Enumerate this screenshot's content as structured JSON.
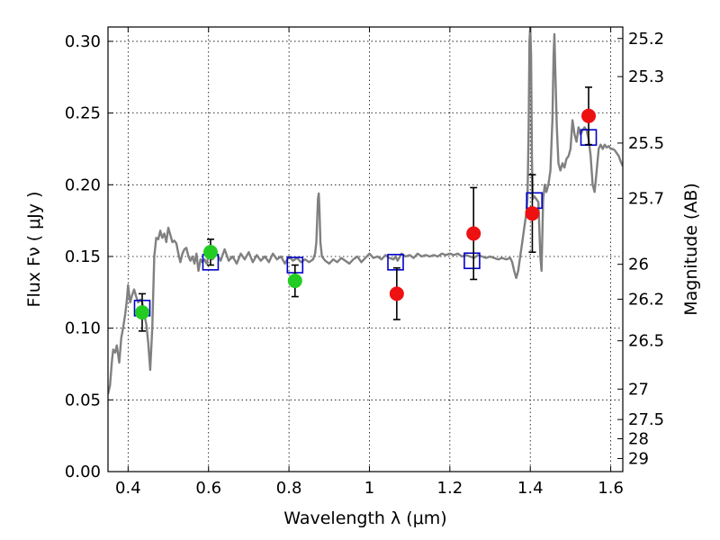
{
  "chart_data": {
    "type": "scatter",
    "xlabel": "Wavelength  λ (μm)",
    "ylabel": "Flux  Fν  ( μJy )",
    "ylabel_right": "Magnitude (AB)",
    "xlim": [
      0.35,
      1.63
    ],
    "ylim": [
      0.0,
      0.31
    ],
    "grid": true,
    "x_ticks": [
      0.4,
      0.6,
      0.8,
      1.0,
      1.2,
      1.4,
      1.6
    ],
    "x_tick_labels": [
      "0.4",
      "0.6",
      "0.8",
      "1",
      "1.2",
      "1.4",
      "1.6"
    ],
    "y_ticks": [
      0.0,
      0.05,
      0.1,
      0.15,
      0.2,
      0.25,
      0.3
    ],
    "y_tick_labels": [
      "0.00",
      "0.05",
      "0.10",
      "0.15",
      "0.20",
      "0.25",
      "0.30"
    ],
    "right_ticks": [
      {
        "label": "25.2",
        "value": 25.2
      },
      {
        "label": "25.3",
        "value": 25.3
      },
      {
        "label": "25.5",
        "value": 25.5
      },
      {
        "label": "25.7",
        "value": 25.7
      },
      {
        "label": "26",
        "value": 26.0
      },
      {
        "label": "26.2",
        "value": 26.2
      },
      {
        "label": "26.5",
        "value": 26.5
      },
      {
        "label": "27",
        "value": 27.0
      },
      {
        "label": "27.5",
        "value": 27.5
      },
      {
        "label": "28",
        "value": 28.0
      },
      {
        "label": "29",
        "value": 29.0
      }
    ],
    "series": [
      {
        "kind": "line",
        "color": "#808080",
        "points": [
          [
            0.35,
            0.054
          ],
          [
            0.355,
            0.06
          ],
          [
            0.36,
            0.078
          ],
          [
            0.363,
            0.085
          ],
          [
            0.368,
            0.083
          ],
          [
            0.372,
            0.088
          ],
          [
            0.378,
            0.076
          ],
          [
            0.383,
            0.093
          ],
          [
            0.388,
            0.101
          ],
          [
            0.393,
            0.11
          ],
          [
            0.397,
            0.12
          ],
          [
            0.4,
            0.13
          ],
          [
            0.405,
            0.118
          ],
          [
            0.41,
            0.123
          ],
          [
            0.415,
            0.127
          ],
          [
            0.42,
            0.122
          ],
          [
            0.425,
            0.118
          ],
          [
            0.43,
            0.12
          ],
          [
            0.435,
            0.118
          ],
          [
            0.44,
            0.11
          ],
          [
            0.445,
            0.103
          ],
          [
            0.45,
            0.09
          ],
          [
            0.455,
            0.071
          ],
          [
            0.46,
            0.1
          ],
          [
            0.465,
            0.15
          ],
          [
            0.47,
            0.163
          ],
          [
            0.475,
            0.162
          ],
          [
            0.48,
            0.168
          ],
          [
            0.485,
            0.163
          ],
          [
            0.49,
            0.166
          ],
          [
            0.495,
            0.16
          ],
          [
            0.5,
            0.17
          ],
          [
            0.505,
            0.165
          ],
          [
            0.51,
            0.16
          ],
          [
            0.515,
            0.161
          ],
          [
            0.52,
            0.159
          ],
          [
            0.525,
            0.152
          ],
          [
            0.53,
            0.146
          ],
          [
            0.535,
            0.152
          ],
          [
            0.54,
            0.155
          ],
          [
            0.545,
            0.156
          ],
          [
            0.55,
            0.15
          ],
          [
            0.555,
            0.147
          ],
          [
            0.56,
            0.15
          ],
          [
            0.565,
            0.145
          ],
          [
            0.57,
            0.152
          ],
          [
            0.575,
            0.14
          ],
          [
            0.58,
            0.148
          ],
          [
            0.585,
            0.146
          ],
          [
            0.59,
            0.148
          ],
          [
            0.595,
            0.145
          ],
          [
            0.6,
            0.15
          ],
          [
            0.61,
            0.148
          ],
          [
            0.62,
            0.152
          ],
          [
            0.63,
            0.147
          ],
          [
            0.64,
            0.155
          ],
          [
            0.65,
            0.147
          ],
          [
            0.66,
            0.15
          ],
          [
            0.67,
            0.145
          ],
          [
            0.68,
            0.152
          ],
          [
            0.69,
            0.148
          ],
          [
            0.7,
            0.153
          ],
          [
            0.71,
            0.146
          ],
          [
            0.72,
            0.151
          ],
          [
            0.73,
            0.147
          ],
          [
            0.74,
            0.15
          ],
          [
            0.75,
            0.146
          ],
          [
            0.76,
            0.152
          ],
          [
            0.77,
            0.148
          ],
          [
            0.78,
            0.15
          ],
          [
            0.79,
            0.145
          ],
          [
            0.8,
            0.15
          ],
          [
            0.81,
            0.147
          ],
          [
            0.82,
            0.149
          ],
          [
            0.83,
            0.146
          ],
          [
            0.84,
            0.148
          ],
          [
            0.85,
            0.146
          ],
          [
            0.86,
            0.148
          ],
          [
            0.865,
            0.152
          ],
          [
            0.868,
            0.16
          ],
          [
            0.87,
            0.175
          ],
          [
            0.872,
            0.19
          ],
          [
            0.874,
            0.194
          ],
          [
            0.876,
            0.18
          ],
          [
            0.878,
            0.16
          ],
          [
            0.882,
            0.15
          ],
          [
            0.89,
            0.147
          ],
          [
            0.9,
            0.145
          ],
          [
            0.91,
            0.148
          ],
          [
            0.92,
            0.146
          ],
          [
            0.93,
            0.149
          ],
          [
            0.94,
            0.147
          ],
          [
            0.95,
            0.145
          ],
          [
            0.96,
            0.148
          ],
          [
            0.97,
            0.15
          ],
          [
            0.98,
            0.146
          ],
          [
            0.99,
            0.149
          ],
          [
            1.0,
            0.152
          ],
          [
            1.01,
            0.149
          ],
          [
            1.02,
            0.15
          ],
          [
            1.03,
            0.148
          ],
          [
            1.04,
            0.151
          ],
          [
            1.05,
            0.149
          ],
          [
            1.06,
            0.148
          ],
          [
            1.065,
            0.15
          ],
          [
            1.07,
            0.147
          ],
          [
            1.08,
            0.152
          ],
          [
            1.09,
            0.15
          ],
          [
            1.1,
            0.151
          ],
          [
            1.11,
            0.149
          ],
          [
            1.12,
            0.152
          ],
          [
            1.13,
            0.15
          ],
          [
            1.14,
            0.151
          ],
          [
            1.15,
            0.15
          ],
          [
            1.16,
            0.151
          ],
          [
            1.17,
            0.15
          ],
          [
            1.18,
            0.152
          ],
          [
            1.19,
            0.151
          ],
          [
            1.2,
            0.152
          ],
          [
            1.21,
            0.151
          ],
          [
            1.22,
            0.152
          ],
          [
            1.23,
            0.15
          ],
          [
            1.24,
            0.151
          ],
          [
            1.25,
            0.15
          ],
          [
            1.26,
            0.149
          ],
          [
            1.27,
            0.151
          ],
          [
            1.28,
            0.15
          ],
          [
            1.29,
            0.149
          ],
          [
            1.3,
            0.15
          ],
          [
            1.31,
            0.149
          ],
          [
            1.32,
            0.148
          ],
          [
            1.33,
            0.149
          ],
          [
            1.34,
            0.148
          ],
          [
            1.35,
            0.149
          ],
          [
            1.355,
            0.146
          ],
          [
            1.36,
            0.14
          ],
          [
            1.365,
            0.135
          ],
          [
            1.37,
            0.14
          ],
          [
            1.375,
            0.15
          ],
          [
            1.38,
            0.16
          ],
          [
            1.385,
            0.17
          ],
          [
            1.39,
            0.18
          ],
          [
            1.393,
            0.19
          ],
          [
            1.396,
            0.24
          ],
          [
            1.398,
            0.3
          ],
          [
            1.4,
            0.31
          ],
          [
            1.402,
            0.29
          ],
          [
            1.404,
            0.22
          ],
          [
            1.406,
            0.19
          ],
          [
            1.41,
            0.192
          ],
          [
            1.415,
            0.19
          ],
          [
            1.42,
            0.188
          ],
          [
            1.425,
            0.15
          ],
          [
            1.428,
            0.14
          ],
          [
            1.432,
            0.19
          ],
          [
            1.436,
            0.2
          ],
          [
            1.44,
            0.195
          ],
          [
            1.445,
            0.2
          ],
          [
            1.45,
            0.21
          ],
          [
            1.455,
            0.245
          ],
          [
            1.458,
            0.29
          ],
          [
            1.46,
            0.305
          ],
          [
            1.463,
            0.27
          ],
          [
            1.466,
            0.24
          ],
          [
            1.47,
            0.215
          ],
          [
            1.475,
            0.21
          ],
          [
            1.48,
            0.215
          ],
          [
            1.485,
            0.212
          ],
          [
            1.49,
            0.218
          ],
          [
            1.495,
            0.22
          ],
          [
            1.5,
            0.225
          ],
          [
            1.505,
            0.245
          ],
          [
            1.51,
            0.235
          ],
          [
            1.515,
            0.23
          ],
          [
            1.52,
            0.24
          ],
          [
            1.525,
            0.235
          ],
          [
            1.53,
            0.238
          ],
          [
            1.535,
            0.24
          ],
          [
            1.54,
            0.238
          ],
          [
            1.545,
            0.232
          ],
          [
            1.55,
            0.22
          ],
          [
            1.555,
            0.2
          ],
          [
            1.56,
            0.195
          ],
          [
            1.565,
            0.21
          ],
          [
            1.57,
            0.225
          ],
          [
            1.575,
            0.228
          ],
          [
            1.58,
            0.225
          ],
          [
            1.585,
            0.228
          ],
          [
            1.59,
            0.226
          ],
          [
            1.595,
            0.227
          ],
          [
            1.6,
            0.225
          ],
          [
            1.605,
            0.225
          ],
          [
            1.61,
            0.224
          ],
          [
            1.615,
            0.222
          ],
          [
            1.62,
            0.22
          ],
          [
            1.625,
            0.216
          ],
          [
            1.63,
            0.213
          ]
        ]
      },
      {
        "kind": "open-squares",
        "color": "#0000cc",
        "points": [
          [
            0.435,
            0.114
          ],
          [
            0.605,
            0.146
          ],
          [
            0.815,
            0.144
          ],
          [
            1.065,
            0.146
          ],
          [
            1.255,
            0.147
          ],
          [
            1.41,
            0.189
          ],
          [
            1.545,
            0.233
          ]
        ]
      },
      {
        "kind": "markers-with-errors",
        "points": [
          {
            "x": 0.435,
            "y": 0.111,
            "err": 0.013,
            "color": "#22cc22"
          },
          {
            "x": 0.605,
            "y": 0.153,
            "err": 0.009,
            "color": "#22cc22"
          },
          {
            "x": 0.815,
            "y": 0.133,
            "err": 0.011,
            "color": "#22cc22"
          },
          {
            "x": 1.068,
            "y": 0.124,
            "err": 0.018,
            "color": "#ee1111"
          },
          {
            "x": 1.259,
            "y": 0.166,
            "err": 0.032,
            "color": "#ee1111"
          },
          {
            "x": 1.405,
            "y": 0.18,
            "err": 0.027,
            "color": "#ee1111"
          },
          {
            "x": 1.545,
            "y": 0.248,
            "err": 0.02,
            "color": "#ee1111"
          }
        ]
      }
    ]
  }
}
